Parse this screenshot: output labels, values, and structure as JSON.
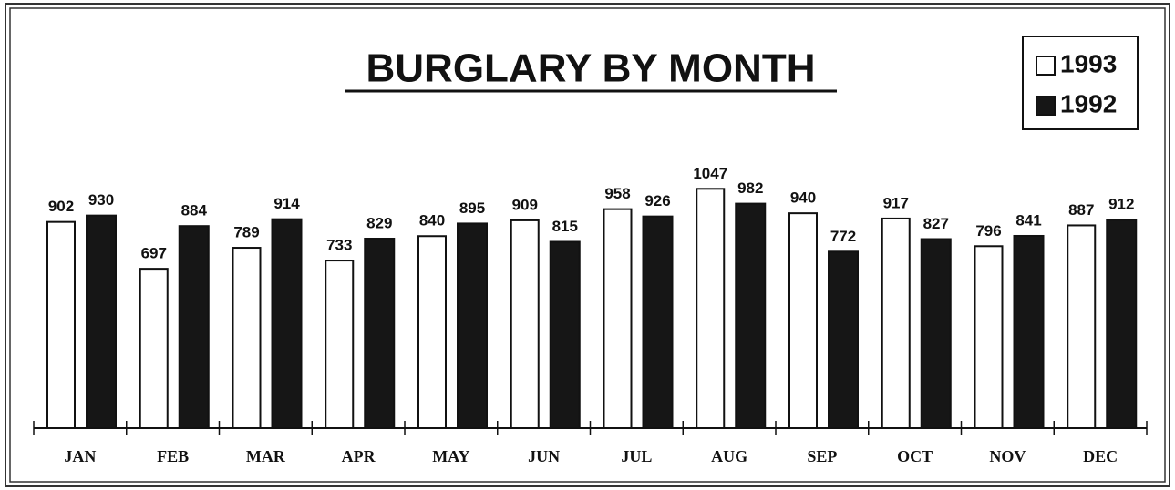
{
  "chart_data": {
    "type": "bar",
    "title": "BURGLARY BY MONTH",
    "categories": [
      "JAN",
      "FEB",
      "MAR",
      "APR",
      "MAY",
      "JUN",
      "JUL",
      "AUG",
      "SEP",
      "OCT",
      "NOV",
      "DEC"
    ],
    "series": [
      {
        "name": "1993",
        "color": "#ffffff",
        "values": [
          902,
          697,
          789,
          733,
          840,
          909,
          958,
          1047,
          940,
          917,
          796,
          887
        ]
      },
      {
        "name": "1992",
        "color": "#161616",
        "values": [
          930,
          884,
          914,
          829,
          895,
          815,
          926,
          982,
          772,
          827,
          841,
          912
        ]
      }
    ],
    "ylim": [
      0,
      1100
    ],
    "legend": "top-right"
  }
}
